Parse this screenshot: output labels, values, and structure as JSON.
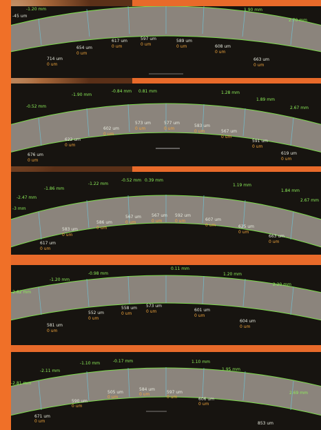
{
  "panels": [
    {
      "labels": [
        {
          "text": "-45 um",
          "c": "w"
        },
        {
          "text": "-1.20 mm",
          "c": "g"
        },
        {
          "text": "1.90 mm",
          "c": "g"
        },
        {
          "text": "2.70 mm",
          "c": "g"
        },
        {
          "text": "654 um",
          "c": "w"
        },
        {
          "text": "0 um",
          "c": "o"
        },
        {
          "text": "617 um",
          "c": "w"
        },
        {
          "text": "0 um",
          "c": "o"
        },
        {
          "text": "597 um",
          "c": "w"
        },
        {
          "text": "0 um",
          "c": "o"
        },
        {
          "text": "589 um",
          "c": "w"
        },
        {
          "text": "0 um",
          "c": "o"
        },
        {
          "text": "608 um",
          "c": "w"
        },
        {
          "text": "0 um",
          "c": "o"
        },
        {
          "text": "714 um",
          "c": "w"
        },
        {
          "text": "0 um",
          "c": "o"
        },
        {
          "text": "663 um",
          "c": "w"
        },
        {
          "text": "0 um",
          "c": "o"
        }
      ]
    },
    {
      "labels": [
        {
          "text": "-1.90 mm",
          "c": "g"
        },
        {
          "text": "-0.84 mm",
          "c": "g"
        },
        {
          "text": "0.81 mm",
          "c": "g"
        },
        {
          "text": "1.28 mm",
          "c": "g"
        },
        {
          "text": "-0.52 mm",
          "c": "g"
        },
        {
          "text": "1.89 mm",
          "c": "g"
        },
        {
          "text": "2.67 mm",
          "c": "g"
        },
        {
          "text": "602 um",
          "c": "w"
        },
        {
          "text": "0 um",
          "c": "o"
        },
        {
          "text": "573 um",
          "c": "w"
        },
        {
          "text": "0 um",
          "c": "o"
        },
        {
          "text": "577 um",
          "c": "w"
        },
        {
          "text": "0 um",
          "c": "o"
        },
        {
          "text": "583 um",
          "c": "w"
        },
        {
          "text": "0 um",
          "c": "o"
        },
        {
          "text": "567 um",
          "c": "w"
        },
        {
          "text": "0 um",
          "c": "o"
        },
        {
          "text": "622 um",
          "c": "w"
        },
        {
          "text": "0 um",
          "c": "o"
        },
        {
          "text": "591 um",
          "c": "w"
        },
        {
          "text": "0 um",
          "c": "o"
        },
        {
          "text": "676 um",
          "c": "w"
        },
        {
          "text": "0 um",
          "c": "o"
        },
        {
          "text": "619 um",
          "c": "w"
        },
        {
          "text": "0 um",
          "c": "o"
        }
      ]
    },
    {
      "labels": [
        {
          "text": "-1.22 mm",
          "c": "g"
        },
        {
          "text": "-0.52 mm",
          "c": "g"
        },
        {
          "text": "0.39 mm",
          "c": "g"
        },
        {
          "text": "-1.86 mm",
          "c": "g"
        },
        {
          "text": "1.19 mm",
          "c": "g"
        },
        {
          "text": "1.84 mm",
          "c": "g"
        },
        {
          "text": "-2.47 mm",
          "c": "g"
        },
        {
          "text": "2.67 mm",
          "c": "g"
        },
        {
          "text": "-3 mm",
          "c": "g"
        },
        {
          "text": "586 um",
          "c": "w"
        },
        {
          "text": "0 um",
          "c": "o"
        },
        {
          "text": "567 um",
          "c": "w"
        },
        {
          "text": "0 um",
          "c": "o"
        },
        {
          "text": "567 um",
          "c": "w"
        },
        {
          "text": "0 um",
          "c": "o"
        },
        {
          "text": "592 um",
          "c": "w"
        },
        {
          "text": "0 um",
          "c": "o"
        },
        {
          "text": "607 um",
          "c": "w"
        },
        {
          "text": "0 um",
          "c": "o"
        },
        {
          "text": "583 um",
          "c": "w"
        },
        {
          "text": "0 um",
          "c": "o"
        },
        {
          "text": "625 um",
          "c": "w"
        },
        {
          "text": "0 um",
          "c": "o"
        },
        {
          "text": "617 um",
          "c": "w"
        },
        {
          "text": "0 um",
          "c": "o"
        },
        {
          "text": "663 um",
          "c": "w"
        },
        {
          "text": "0 um",
          "c": "o"
        }
      ]
    },
    {
      "labels": [
        {
          "text": "-0.98 mm",
          "c": "g"
        },
        {
          "text": "0.11 mm",
          "c": "g"
        },
        {
          "text": "-1.20 mm",
          "c": "g"
        },
        {
          "text": "1.20 mm",
          "c": "g"
        },
        {
          "text": "-2.62 mm",
          "c": "g"
        },
        {
          "text": "2.20 mm",
          "c": "g"
        },
        {
          "text": "558 um",
          "c": "w"
        },
        {
          "text": "0 um",
          "c": "o"
        },
        {
          "text": "573 um",
          "c": "w"
        },
        {
          "text": "0 um",
          "c": "o"
        },
        {
          "text": "552 um",
          "c": "w"
        },
        {
          "text": "0 um",
          "c": "o"
        },
        {
          "text": "601 um",
          "c": "w"
        },
        {
          "text": "0 um",
          "c": "o"
        },
        {
          "text": "581 um",
          "c": "w"
        },
        {
          "text": "0 um",
          "c": "o"
        },
        {
          "text": "604 um",
          "c": "w"
        },
        {
          "text": "0 um",
          "c": "o"
        }
      ]
    },
    {
      "labels": [
        {
          "text": "-1.10 mm",
          "c": "g"
        },
        {
          "text": "-0.17 mm",
          "c": "g"
        },
        {
          "text": "1.10 mm",
          "c": "g"
        },
        {
          "text": "-2.11 mm",
          "c": "g"
        },
        {
          "text": "1.95 mm",
          "c": "g"
        },
        {
          "text": "-2.81 mm",
          "c": "g"
        },
        {
          "text": "2.69 mm",
          "c": "g"
        },
        {
          "text": "505 um",
          "c": "w"
        },
        {
          "text": "0 um",
          "c": "o"
        },
        {
          "text": "584 um",
          "c": "w"
        },
        {
          "text": "0 um",
          "c": "o"
        },
        {
          "text": "597 um",
          "c": "w"
        },
        {
          "text": "0 um",
          "c": "o"
        },
        {
          "text": "590 um",
          "c": "w"
        },
        {
          "text": "0 um",
          "c": "o"
        },
        {
          "text": "606 um",
          "c": "w"
        },
        {
          "text": "0 um",
          "c": "o"
        },
        {
          "text": "671 um",
          "c": "w"
        },
        {
          "text": "0 um",
          "c": "o"
        },
        {
          "text": "853 um",
          "c": "w"
        }
      ]
    }
  ]
}
